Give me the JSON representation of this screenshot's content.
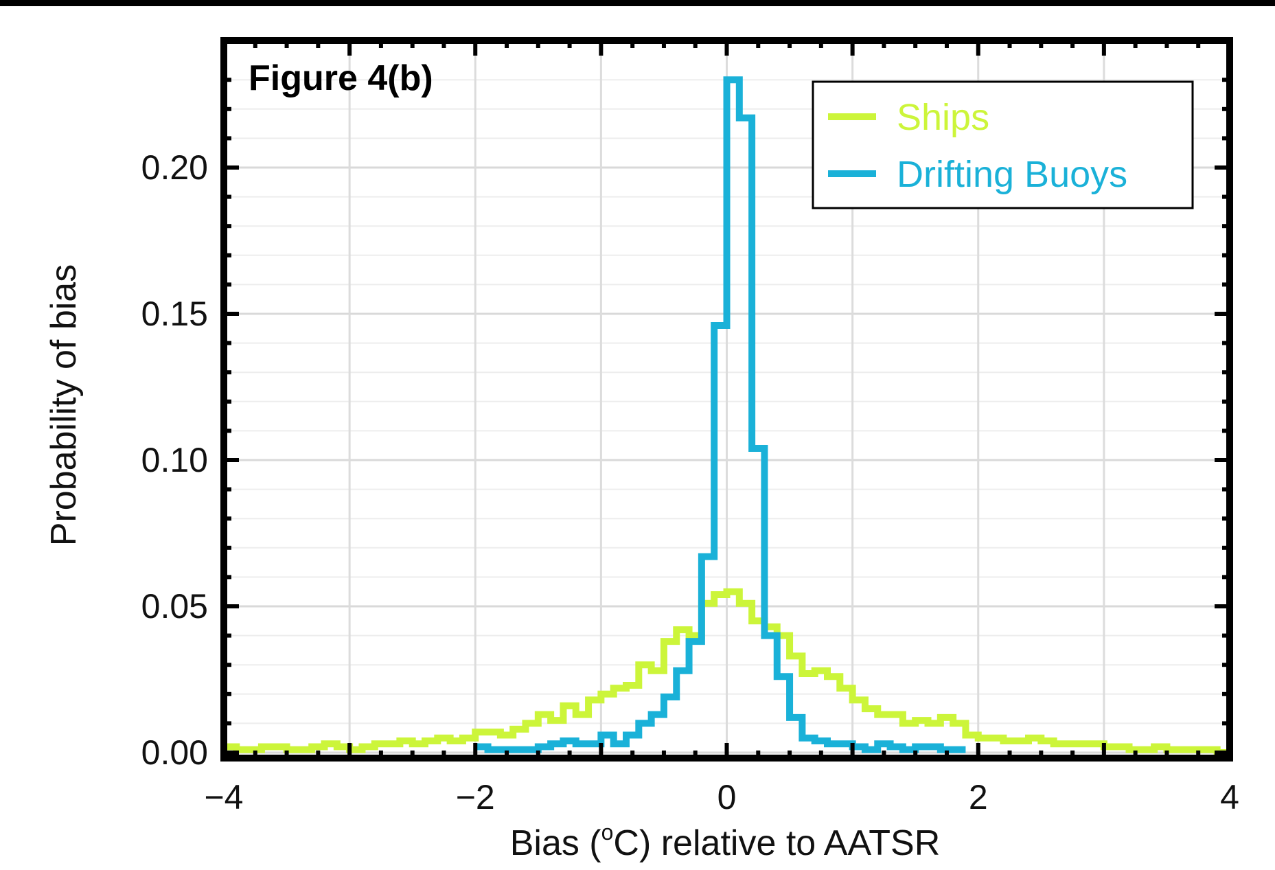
{
  "chart_data": {
    "type": "line",
    "title": "Figure 4(b)",
    "xlabel_prefix": "Bias (",
    "xlabel_degree": "o",
    "xlabel_suffix": "C) relative to AATSR",
    "ylabel": "Probability of bias",
    "xlim": [
      -4,
      4
    ],
    "ylim": [
      0,
      0.23
    ],
    "xticks": [
      -4,
      -2,
      0,
      2,
      4
    ],
    "xtick_labels": [
      "−4",
      "−2",
      "0",
      "2",
      "4"
    ],
    "yticks": [
      0,
      0.05,
      0.1,
      0.15,
      0.2
    ],
    "ytick_labels": [
      "0.00",
      "0.05",
      "0.10",
      "0.15",
      "0.20"
    ],
    "grid": true,
    "legend_position": "top-right",
    "step_style": "histogram",
    "bin_width": 0.1,
    "series": [
      {
        "name": "Ships",
        "color": "#ccf53a",
        "x": [
          -4.0,
          -3.9,
          -3.8,
          -3.7,
          -3.6,
          -3.5,
          -3.4,
          -3.3,
          -3.2,
          -3.1,
          -3.0,
          -2.9,
          -2.8,
          -2.7,
          -2.6,
          -2.5,
          -2.4,
          -2.3,
          -2.2,
          -2.1,
          -2.0,
          -1.9,
          -1.8,
          -1.7,
          -1.6,
          -1.5,
          -1.4,
          -1.3,
          -1.2,
          -1.1,
          -1.0,
          -0.9,
          -0.8,
          -0.7,
          -0.6,
          -0.5,
          -0.4,
          -0.3,
          -0.2,
          -0.1,
          0.0,
          0.1,
          0.2,
          0.3,
          0.4,
          0.5,
          0.6,
          0.7,
          0.8,
          0.9,
          1.0,
          1.1,
          1.2,
          1.3,
          1.4,
          1.5,
          1.6,
          1.7,
          1.8,
          1.9,
          2.0,
          2.1,
          2.2,
          2.3,
          2.4,
          2.5,
          2.6,
          2.7,
          2.8,
          2.9,
          3.0,
          3.1,
          3.2,
          3.3,
          3.4,
          3.5,
          3.6,
          3.7,
          3.8,
          3.9
        ],
        "values": [
          0.002,
          0.001,
          0.001,
          0.002,
          0.002,
          0.001,
          0.001,
          0.002,
          0.003,
          0.002,
          0.001,
          0.002,
          0.003,
          0.003,
          0.004,
          0.003,
          0.004,
          0.005,
          0.004,
          0.005,
          0.007,
          0.007,
          0.006,
          0.008,
          0.01,
          0.013,
          0.011,
          0.016,
          0.013,
          0.018,
          0.02,
          0.022,
          0.023,
          0.03,
          0.028,
          0.038,
          0.042,
          0.04,
          0.051,
          0.054,
          0.055,
          0.051,
          0.045,
          0.043,
          0.04,
          0.033,
          0.027,
          0.028,
          0.026,
          0.022,
          0.018,
          0.015,
          0.013,
          0.013,
          0.01,
          0.011,
          0.01,
          0.012,
          0.01,
          0.006,
          0.005,
          0.005,
          0.004,
          0.004,
          0.005,
          0.004,
          0.003,
          0.003,
          0.003,
          0.003,
          0.002,
          0.002,
          0.001,
          0.001,
          0.002,
          0.001,
          0.001,
          0.001,
          0.001,
          0.0
        ]
      },
      {
        "name": "Drifting Buoys",
        "color": "#1ab1d8",
        "x": [
          -2.0,
          -1.9,
          -1.8,
          -1.7,
          -1.6,
          -1.5,
          -1.4,
          -1.3,
          -1.2,
          -1.1,
          -1.0,
          -0.9,
          -0.8,
          -0.7,
          -0.6,
          -0.5,
          -0.4,
          -0.3,
          -0.2,
          -0.1,
          0.0,
          0.1,
          0.2,
          0.3,
          0.4,
          0.5,
          0.6,
          0.7,
          0.8,
          0.9,
          1.0,
          1.1,
          1.2,
          1.3,
          1.4,
          1.5,
          1.6,
          1.7,
          1.8
        ],
        "values": [
          0.002,
          0.001,
          0.001,
          0.001,
          0.001,
          0.002,
          0.003,
          0.004,
          0.003,
          0.003,
          0.006,
          0.003,
          0.006,
          0.01,
          0.013,
          0.019,
          0.028,
          0.038,
          0.067,
          0.146,
          0.23,
          0.217,
          0.104,
          0.04,
          0.026,
          0.012,
          0.005,
          0.004,
          0.003,
          0.003,
          0.002,
          0.001,
          0.003,
          0.002,
          0.001,
          0.002,
          0.002,
          0.001,
          0.001
        ]
      }
    ]
  }
}
